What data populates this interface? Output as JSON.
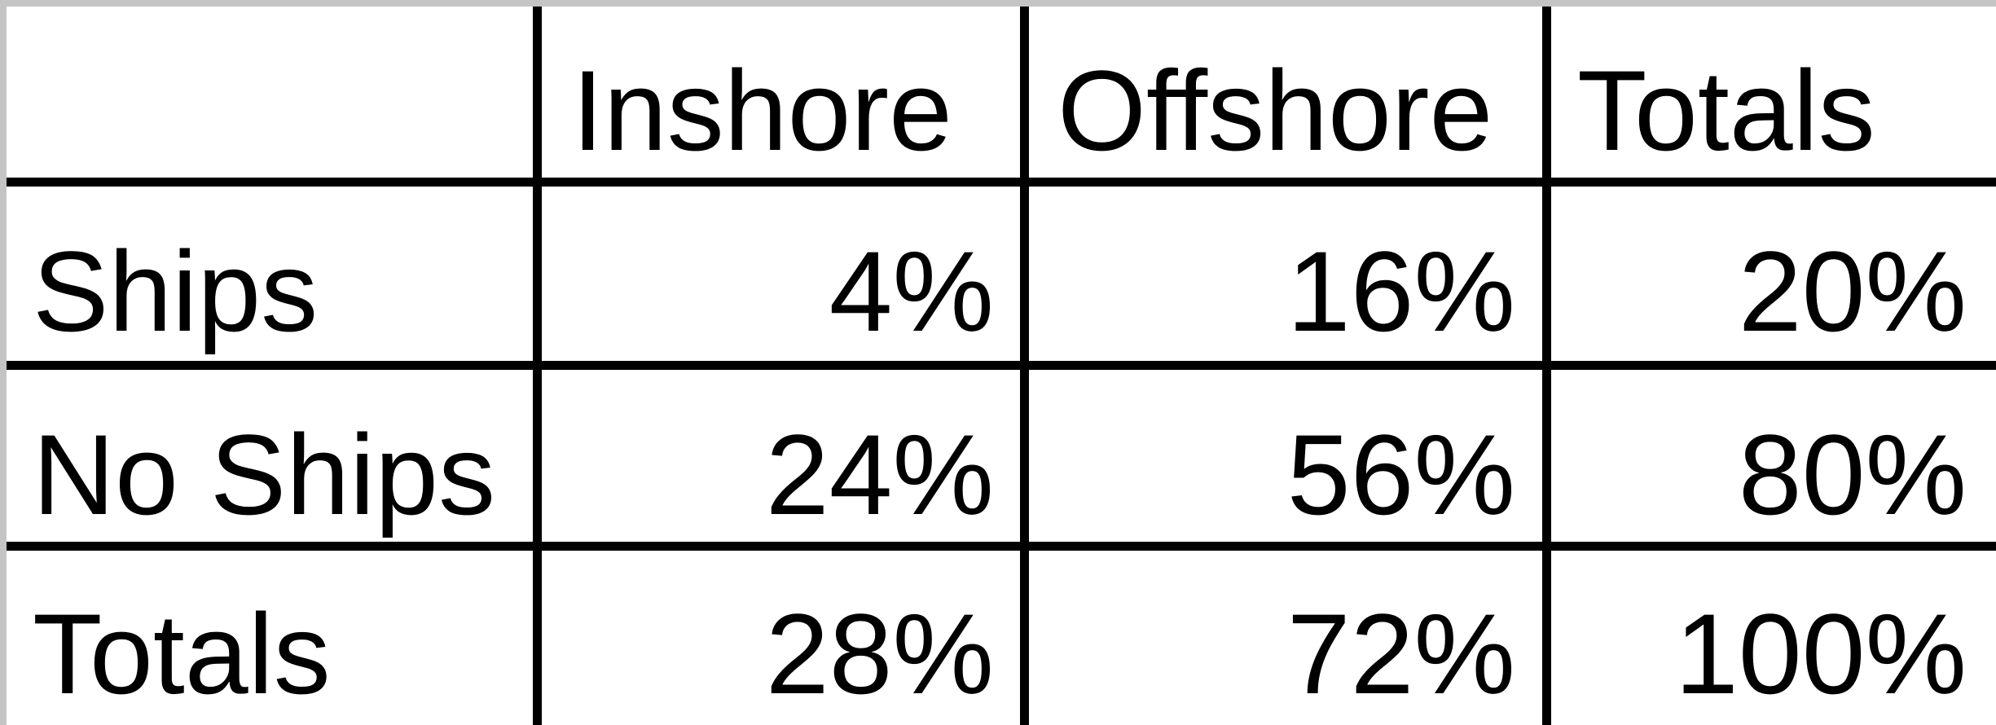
{
  "table": {
    "columns": [
      "",
      "Inshore",
      "Offshore",
      "Totals"
    ],
    "rows": [
      {
        "label": "Ships",
        "values": [
          "4%",
          "16%",
          "20%"
        ]
      },
      {
        "label": "No Ships",
        "values": [
          "24%",
          "56%",
          "80%"
        ]
      },
      {
        "label": "Totals",
        "values": [
          "28%",
          "72%",
          "100%"
        ]
      }
    ]
  }
}
